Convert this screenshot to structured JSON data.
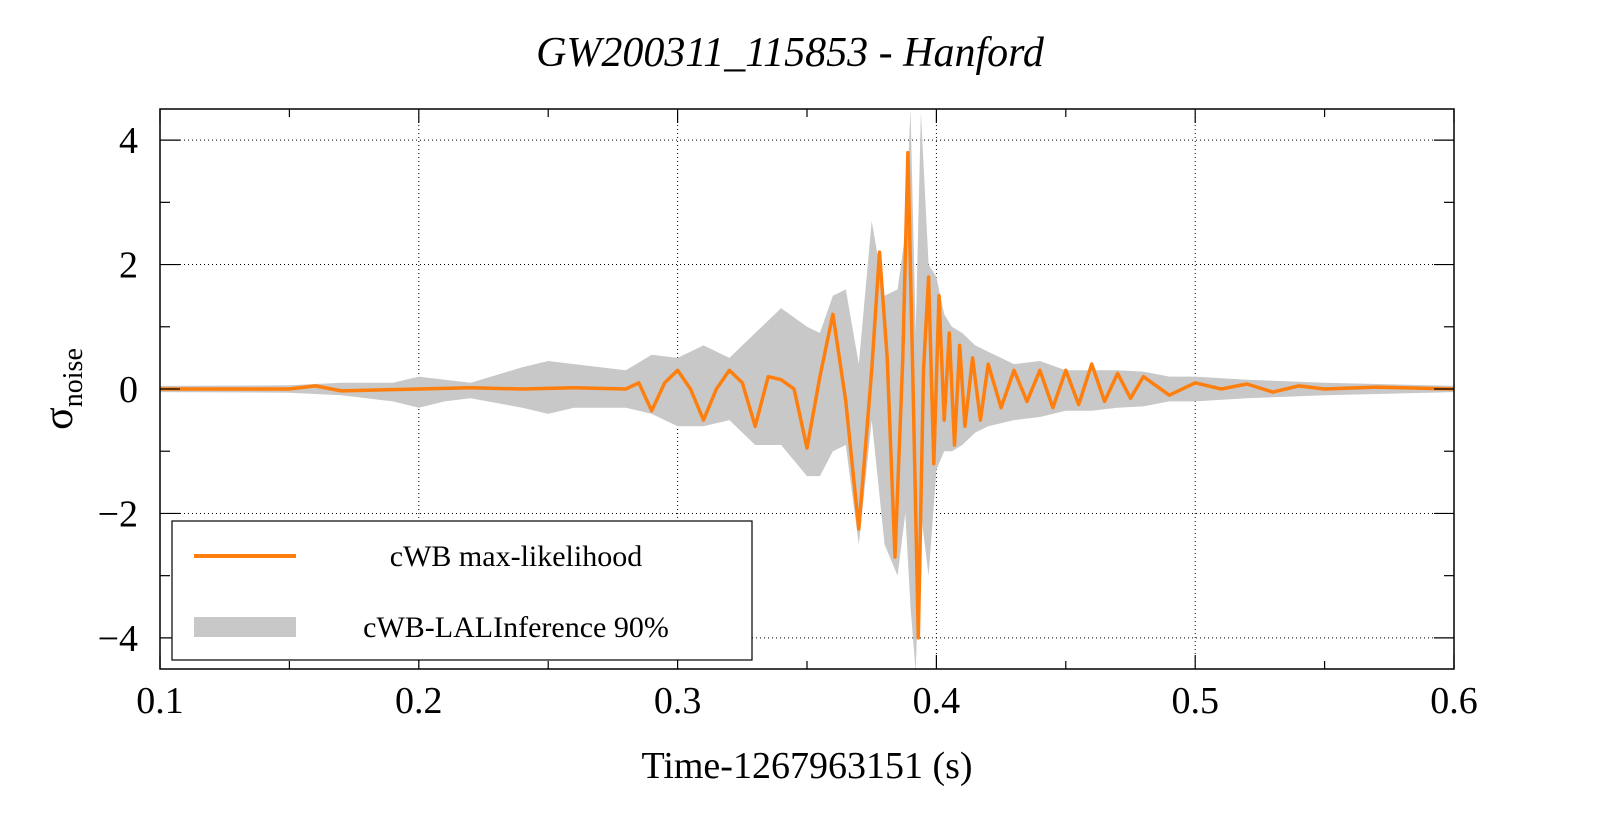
{
  "chart_data": {
    "type": "line",
    "title": "GW200311_115853 - Hanford",
    "xlabel": "Time-1267963151 (s)",
    "ylabel": {
      "symbol": "σ",
      "subscript": "noise"
    },
    "xlim": [
      0.1,
      0.6
    ],
    "ylim": [
      -4.5,
      4.5
    ],
    "xticks": [
      0.1,
      0.2,
      0.3,
      0.4,
      0.5,
      0.6
    ],
    "xtick_labels": [
      "0.1",
      "0.2",
      "0.3",
      "0.4",
      "0.5",
      "0.6"
    ],
    "yticks": [
      -4,
      -2,
      0,
      2,
      4
    ],
    "ytick_labels": [
      "−4",
      "−2",
      "0",
      "2",
      "4"
    ],
    "grid": true,
    "legend_position": "bottom-left",
    "colors": {
      "ml": "#ff7f0e",
      "band": "#c8c8c8"
    },
    "series": [
      {
        "name": "cWB max-likelihood",
        "style": "line",
        "x": [
          0.1,
          0.15,
          0.16,
          0.17,
          0.2,
          0.22,
          0.24,
          0.26,
          0.28,
          0.285,
          0.29,
          0.295,
          0.3,
          0.305,
          0.31,
          0.315,
          0.32,
          0.325,
          0.33,
          0.335,
          0.34,
          0.345,
          0.35,
          0.355,
          0.36,
          0.365,
          0.37,
          0.375,
          0.378,
          0.381,
          0.384,
          0.387,
          0.389,
          0.391,
          0.393,
          0.395,
          0.397,
          0.399,
          0.401,
          0.403,
          0.405,
          0.407,
          0.409,
          0.411,
          0.414,
          0.417,
          0.42,
          0.425,
          0.43,
          0.435,
          0.44,
          0.445,
          0.45,
          0.455,
          0.46,
          0.465,
          0.47,
          0.475,
          0.48,
          0.49,
          0.5,
          0.51,
          0.52,
          0.53,
          0.54,
          0.55,
          0.57,
          0.6
        ],
        "values": [
          0.0,
          0.0,
          0.05,
          -0.03,
          0.0,
          0.02,
          0.0,
          0.02,
          0.0,
          0.1,
          -0.35,
          0.1,
          0.3,
          0.0,
          -0.5,
          0.0,
          0.3,
          0.1,
          -0.6,
          0.2,
          0.15,
          0.0,
          -0.95,
          0.2,
          1.2,
          -0.2,
          -2.25,
          0.3,
          2.2,
          0.5,
          -2.7,
          0.5,
          3.8,
          0.0,
          -4.0,
          0.3,
          1.8,
          -1.2,
          1.5,
          -0.5,
          0.9,
          -0.9,
          0.7,
          -0.6,
          0.5,
          -0.5,
          0.4,
          -0.3,
          0.3,
          -0.2,
          0.3,
          -0.3,
          0.3,
          -0.25,
          0.4,
          -0.2,
          0.25,
          -0.15,
          0.2,
          -0.1,
          0.1,
          0.0,
          0.08,
          -0.05,
          0.05,
          0.0,
          0.03,
          0.0
        ]
      },
      {
        "name": "cWB-LALInference 90%",
        "style": "band",
        "x": [
          0.1,
          0.15,
          0.17,
          0.19,
          0.2,
          0.21,
          0.22,
          0.24,
          0.25,
          0.26,
          0.28,
          0.29,
          0.3,
          0.31,
          0.32,
          0.33,
          0.34,
          0.35,
          0.355,
          0.36,
          0.365,
          0.37,
          0.375,
          0.38,
          0.385,
          0.388,
          0.39,
          0.392,
          0.394,
          0.397,
          0.4,
          0.403,
          0.406,
          0.41,
          0.415,
          0.42,
          0.43,
          0.44,
          0.45,
          0.46,
          0.47,
          0.48,
          0.49,
          0.5,
          0.52,
          0.55,
          0.6
        ],
        "upper": [
          0.05,
          0.06,
          0.1,
          0.1,
          0.2,
          0.15,
          0.1,
          0.35,
          0.45,
          0.4,
          0.3,
          0.55,
          0.5,
          0.7,
          0.5,
          0.9,
          1.3,
          1.0,
          0.9,
          1.5,
          1.6,
          0.4,
          2.7,
          1.5,
          1.6,
          2.5,
          4.5,
          0.9,
          4.45,
          2.0,
          1.8,
          1.2,
          1.0,
          0.9,
          0.7,
          0.6,
          0.4,
          0.45,
          0.3,
          0.3,
          0.3,
          0.28,
          0.2,
          0.2,
          0.15,
          0.1,
          0.05
        ],
        "lower": [
          -0.05,
          -0.06,
          -0.1,
          -0.2,
          -0.3,
          -0.2,
          -0.15,
          -0.3,
          -0.4,
          -0.3,
          -0.3,
          -0.4,
          -0.6,
          -0.6,
          -0.5,
          -0.9,
          -0.9,
          -1.4,
          -1.4,
          -1.0,
          -0.9,
          -2.5,
          -0.5,
          -2.5,
          -3.0,
          -2.0,
          -3.5,
          -4.55,
          -2.0,
          -3.0,
          -1.3,
          -1.0,
          -1.0,
          -0.9,
          -0.7,
          -0.6,
          -0.5,
          -0.45,
          -0.35,
          -0.35,
          -0.3,
          -0.28,
          -0.2,
          -0.2,
          -0.15,
          -0.1,
          -0.05
        ]
      }
    ]
  }
}
